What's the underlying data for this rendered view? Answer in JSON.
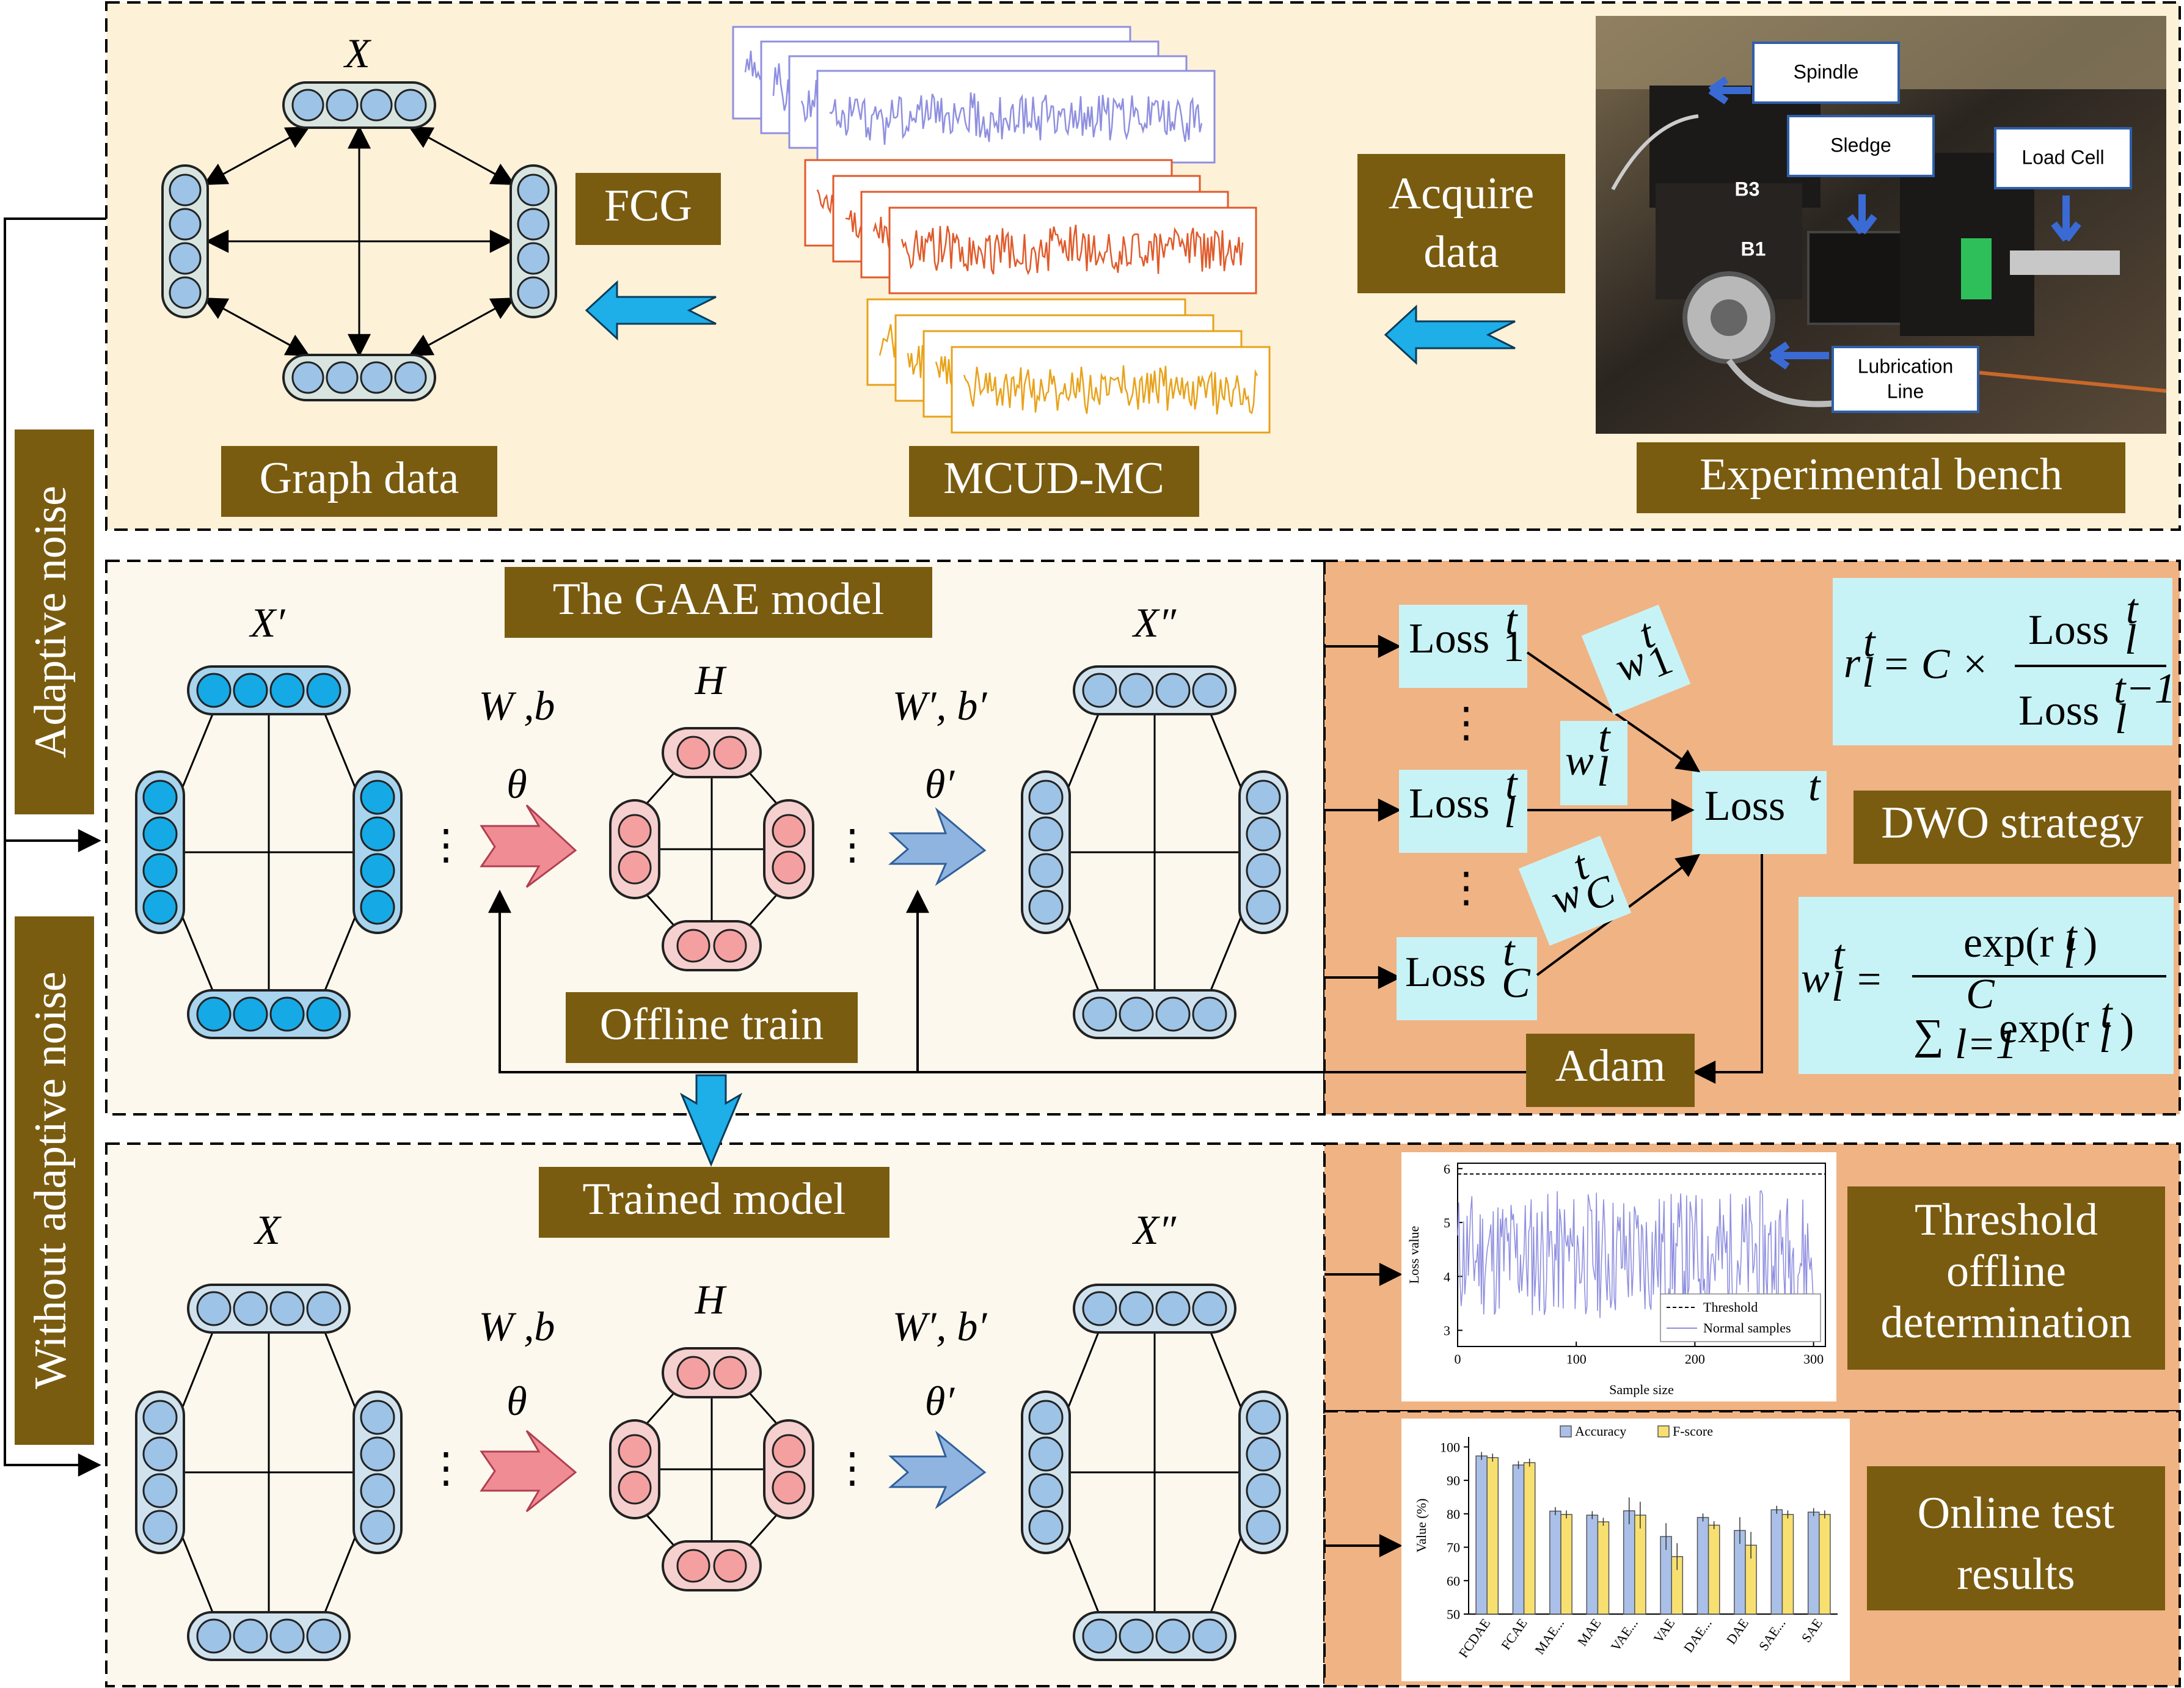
{
  "labels": {
    "graph_data": "Graph data",
    "mcud_mc": "MCUD-MC",
    "experimental_bench": "Experimental bench",
    "fcg": "FCG",
    "acquire_data_line1": "Acquire",
    "acquire_data_line2": "data",
    "gaae_model": "The GAAE model",
    "offline_train": "Offline train",
    "trained_model": "Trained model",
    "dwo_strategy": "DWO strategy",
    "adam": "Adam",
    "threshold_line1": "Threshold",
    "threshold_line2": "offline",
    "threshold_line3": "determination",
    "online_line1": "Online test",
    "online_line2": "results",
    "adaptive_noise": "Adaptive noise",
    "without_adaptive_noise": "Without adaptive noise"
  },
  "symbols": {
    "x": "X",
    "x_prime": "X′",
    "x_double_prime": "X″",
    "h": "H",
    "w_b": "W ,b",
    "theta": "θ",
    "w_b_prime": "W′, b′",
    "theta_prime": "θ′",
    "loss": "Loss",
    "sup_t": "t",
    "sub_1": "1",
    "sub_l": "l",
    "sub_c": "C",
    "w": "w",
    "r": "r",
    "eq1_middle": "= C ×",
    "eq1_sup_den": "t−1",
    "eq2_middle": "=",
    "eq2_num": "exp(r",
    "eq2_den_sum": "∑",
    "eq2_den_upper": "C",
    "eq2_den_lower": "l=1",
    "eq2_den_exp": "exp(r",
    "close_paren": ")",
    "vdots": "⋮",
    "hdots": "⋮"
  },
  "bench_photo": {
    "spindle": "Spindle",
    "sledge": "Sledge",
    "load_cell": "Load Cell",
    "lubrication_line1": "Lubrication",
    "lubrication_line2": "Line",
    "b3": "B3",
    "b1": "B1"
  },
  "colors": {
    "top_panel_bg": "#fdf1d8",
    "mid_panel_bg": "#fdf8ee",
    "orange_panel_bg": "#f0b384",
    "label_bg": "#7a5c10",
    "loss_box": "#c8f3f6",
    "node_blue": "#9dc3e6",
    "node_cyan": "#15a9e6",
    "node_pink": "#f4a0a0",
    "signal_blue": "#8f8fe0",
    "signal_red": "#e05a2a",
    "signal_yellow": "#e8a21a",
    "bar_accuracy": "#aac0e8",
    "bar_fscore": "#f8e070"
  },
  "chart_data": [
    {
      "type": "line",
      "xlabel": "Sample size",
      "ylabel": "Loss value",
      "xlim": [
        0,
        310
      ],
      "ylim": [
        2.7,
        6.1
      ],
      "xticks": [
        0,
        100,
        200,
        300
      ],
      "yticks": [
        3,
        4,
        5,
        6
      ],
      "threshold": 5.9,
      "legend": [
        "Threshold",
        "Normal samples"
      ],
      "legend_position": "bottom-right",
      "grid": false
    },
    {
      "type": "bar",
      "ylabel": "Value  (%)",
      "ylim": [
        50,
        103
      ],
      "yticks": [
        50,
        60,
        70,
        80,
        90,
        100
      ],
      "categories": [
        "FCDAE",
        "FCAE",
        "MAE...",
        "MAE",
        "VAE...",
        "VAE",
        "DAE...",
        "DAE",
        "SAE...",
        "SAE"
      ],
      "legend_position": "top",
      "series": [
        {
          "name": "Accuracy",
          "values": [
            97.3,
            94.6,
            80.8,
            79.6,
            80.9,
            73.2,
            78.9,
            75.0,
            81.2,
            80.5
          ]
        },
        {
          "name": "F-score",
          "values": [
            96.8,
            95.3,
            79.8,
            77.6,
            79.6,
            67.2,
            76.6,
            70.6,
            79.8,
            79.8
          ]
        }
      ]
    }
  ]
}
